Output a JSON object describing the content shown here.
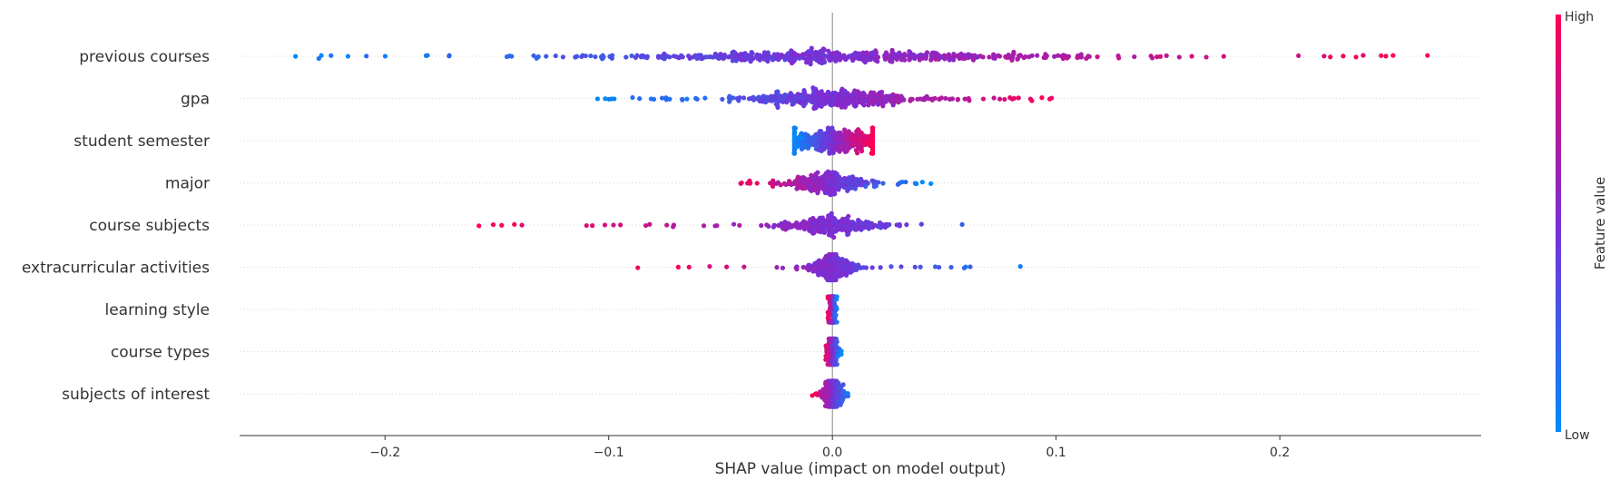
{
  "chart_data": {
    "type": "scatter",
    "subtype": "shap-beeswarm",
    "xlabel": "SHAP value (impact on model output)",
    "xlim": [
      -0.265,
      0.29
    ],
    "xticks": [
      -0.2,
      -0.1,
      0.0,
      0.1,
      0.2
    ],
    "xtick_labels": [
      "−0.2",
      "−0.1",
      "0.0",
      "0.1",
      "0.2"
    ],
    "zero_line": 0.0,
    "grid": false,
    "features": [
      {
        "name": "previous courses",
        "min": -0.24,
        "max": 0.266,
        "low_side": "left",
        "n": 520,
        "spread": 0.052,
        "center_bias": 0.005
      },
      {
        "name": "gpa",
        "min": -0.105,
        "max": 0.098,
        "low_side": "left",
        "n": 420,
        "spread": 0.022,
        "center_bias": 0.0
      },
      {
        "name": "student semester",
        "min": -0.017,
        "max": 0.018,
        "low_side": "left",
        "n": 340,
        "spread": 0.012,
        "center_bias": 0.0
      },
      {
        "name": "major",
        "min": -0.041,
        "max": 0.044,
        "low_side": "right",
        "n": 260,
        "spread": 0.01,
        "center_bias": 0.0
      },
      {
        "name": "course subjects",
        "min": -0.158,
        "max": 0.058,
        "low_side": "right",
        "n": 260,
        "spread": 0.012,
        "center_bias": 0.0
      },
      {
        "name": "extracurricular activities",
        "min": -0.087,
        "max": 0.084,
        "low_side": "right",
        "n": 220,
        "spread": 0.006,
        "center_bias": 0.0
      },
      {
        "name": "learning style",
        "min": -0.002,
        "max": 0.002,
        "low_side": "right",
        "n": 140,
        "spread": 0.0008,
        "center_bias": 0.0
      },
      {
        "name": "course types",
        "min": -0.003,
        "max": 0.004,
        "low_side": "right",
        "n": 140,
        "spread": 0.0012,
        "center_bias": 0.0
      },
      {
        "name": "subjects of interest",
        "min": -0.009,
        "max": 0.007,
        "low_side": "right",
        "n": 160,
        "spread": 0.0025,
        "center_bias": 0.0
      }
    ],
    "colorbar": {
      "label": "Feature value",
      "high_label": "High",
      "low_label": "Low",
      "low_color": "#008bfb",
      "high_color": "#ff0052",
      "mid_color": "#7a2ed5"
    }
  }
}
